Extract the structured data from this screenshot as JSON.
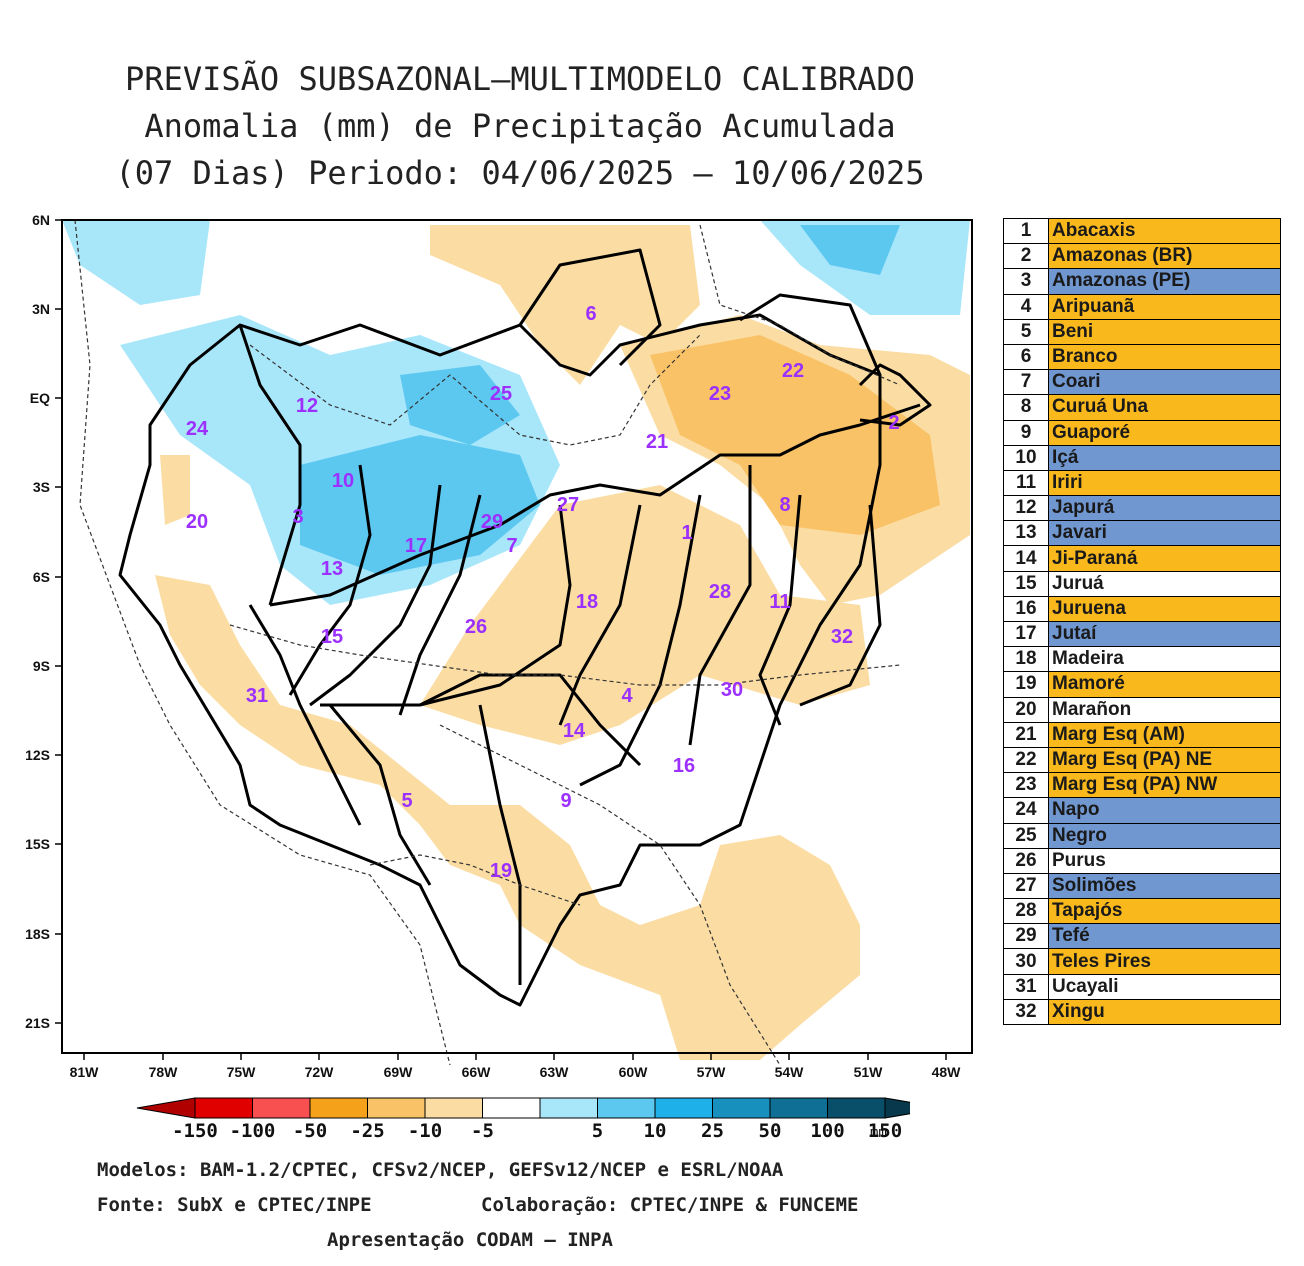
{
  "title": {
    "line1": "PREVISÃO SUBSAZONAL—MULTIMODELO CALIBRADO",
    "line2": "Anomalia (mm) de Precipitação Acumulada",
    "line3": "(07 Dias) Periodo: 04/06/2025 — 10/06/2025"
  },
  "axes": {
    "lat_labels": [
      "6N",
      "3N",
      "EQ",
      "3S",
      "6S",
      "9S",
      "12S",
      "15S",
      "18S",
      "21S"
    ],
    "lon_labels": [
      "81W",
      "78W",
      "75W",
      "72W",
      "69W",
      "66W",
      "63W",
      "60W",
      "57W",
      "54W",
      "51W",
      "48W"
    ]
  },
  "basin_labels": [
    "6",
    "22",
    "23",
    "25",
    "12",
    "24",
    "2",
    "21",
    "10",
    "3",
    "29",
    "27",
    "20",
    "7",
    "17",
    "13",
    "8",
    "1",
    "18",
    "28",
    "11",
    "32",
    "26",
    "15",
    "4",
    "31",
    "30",
    "14",
    "16",
    "5",
    "9",
    "19"
  ],
  "legend": [
    {
      "num": "1",
      "name": "Abacaxis",
      "color": "c-orange"
    },
    {
      "num": "2",
      "name": "Amazonas (BR)",
      "color": "c-orange"
    },
    {
      "num": "3",
      "name": "Amazonas (PE)",
      "color": "c-blue"
    },
    {
      "num": "4",
      "name": "Aripuanã",
      "color": "c-orange"
    },
    {
      "num": "5",
      "name": "Beni",
      "color": "c-orange"
    },
    {
      "num": "6",
      "name": "Branco",
      "color": "c-orange"
    },
    {
      "num": "7",
      "name": "Coari",
      "color": "c-blue"
    },
    {
      "num": "8",
      "name": "Curuá Una",
      "color": "c-orange"
    },
    {
      "num": "9",
      "name": "Guaporé",
      "color": "c-orange"
    },
    {
      "num": "10",
      "name": "Içá",
      "color": "c-blue"
    },
    {
      "num": "11",
      "name": "Iriri",
      "color": "c-orange"
    },
    {
      "num": "12",
      "name": "Japurá",
      "color": "c-blue"
    },
    {
      "num": "13",
      "name": "Javari",
      "color": "c-blue"
    },
    {
      "num": "14",
      "name": "Ji-Paraná",
      "color": "c-orange"
    },
    {
      "num": "15",
      "name": "Juruá",
      "color": "c-white"
    },
    {
      "num": "16",
      "name": "Juruena",
      "color": "c-orange"
    },
    {
      "num": "17",
      "name": "Jutaí",
      "color": "c-blue"
    },
    {
      "num": "18",
      "name": "Madeira",
      "color": "c-white"
    },
    {
      "num": "19",
      "name": "Mamoré",
      "color": "c-orange"
    },
    {
      "num": "20",
      "name": "Marañon",
      "color": "c-white"
    },
    {
      "num": "21",
      "name": "Marg Esq (AM)",
      "color": "c-orange"
    },
    {
      "num": "22",
      "name": "Marg Esq (PA) NE",
      "color": "c-orange"
    },
    {
      "num": "23",
      "name": "Marg Esq (PA) NW",
      "color": "c-orange"
    },
    {
      "num": "24",
      "name": "Napo",
      "color": "c-blue"
    },
    {
      "num": "25",
      "name": "Negro",
      "color": "c-blue"
    },
    {
      "num": "26",
      "name": "Purus",
      "color": "c-white"
    },
    {
      "num": "27",
      "name": "Solimões",
      "color": "c-blue"
    },
    {
      "num": "28",
      "name": "Tapajós",
      "color": "c-orange"
    },
    {
      "num": "29",
      "name": "Tefé",
      "color": "c-blue"
    },
    {
      "num": "30",
      "name": "Teles Pires",
      "color": "c-orange"
    },
    {
      "num": "31",
      "name": "Ucayali",
      "color": "c-white"
    },
    {
      "num": "32",
      "name": "Xingu",
      "color": "c-orange"
    }
  ],
  "colorbar": {
    "labels": [
      "-150",
      "-100",
      "-50",
      "-25",
      "-10",
      "-5",
      "5",
      "10",
      "25",
      "50",
      "100",
      "150"
    ],
    "unit": "mm",
    "colors": [
      "#e00000",
      "#f85050",
      "#f5a21a",
      "#f9c266",
      "#fbdda4",
      "#ffffff",
      "#a8e6fa",
      "#5cc8f0",
      "#1eb0e8",
      "#1890be",
      "#0f6f94",
      "#0a4f6a"
    ],
    "end_low": "#b00000",
    "end_high": "#08384c"
  },
  "footer": {
    "models": "Modelos: BAM-1.2/CPTEC, CFSv2/NCEP, GEFSv12/NCEP e ESRL/NOAA",
    "source": "Fonte: SubX e CPTEC/INPE",
    "collab": "Colaboração: CPTEC/INPE & FUNCEME",
    "presentation": "Apresentação CODAM — INPA"
  }
}
